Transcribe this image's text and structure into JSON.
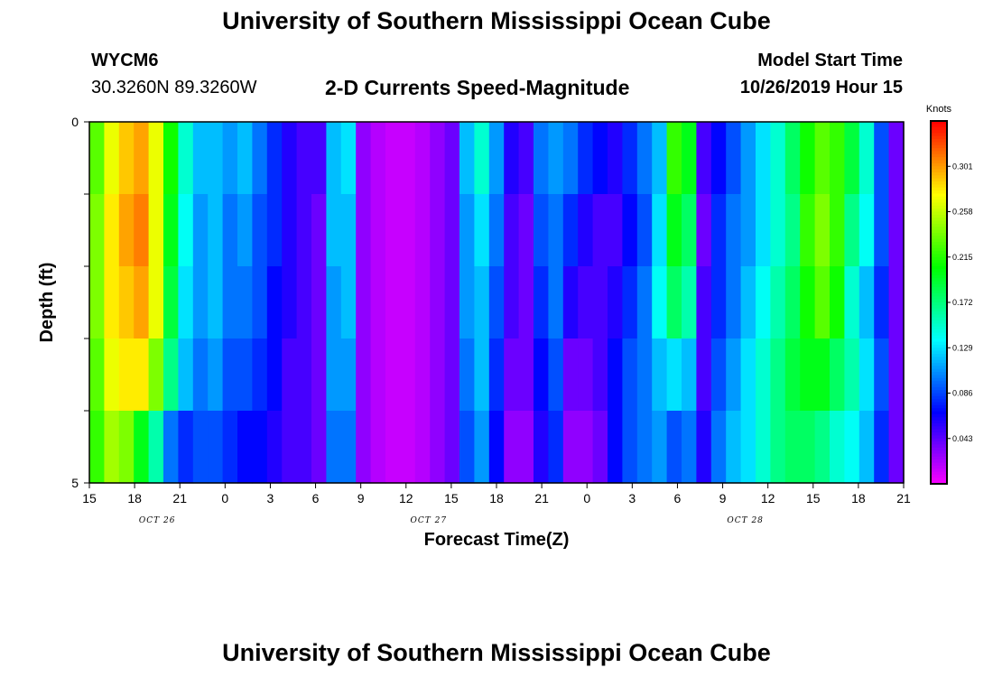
{
  "header": {
    "title": "University of Southern Mississippi Ocean Cube",
    "station_id": "WYCM6",
    "station_coords": "30.3260N 89.3260W",
    "subtitle": "2-D Currents Speed-Magnitude",
    "model_start_label": "Model Start Time",
    "model_start_time": "10/26/2019 Hour 15"
  },
  "footer": {
    "title": "University of Southern Mississippi Ocean Cube"
  },
  "chart_data": {
    "type": "heatmap",
    "title": "2-D Currents Speed-Magnitude",
    "xlabel": "Forecast Time(Z)",
    "ylabel": "Depth (ft)",
    "x_tick_labels": [
      "15",
      "18",
      "21",
      "0",
      "3",
      "6",
      "9",
      "12",
      "15",
      "18",
      "21",
      "0",
      "3",
      "6",
      "9",
      "12",
      "15",
      "18",
      "21"
    ],
    "date_labels": [
      {
        "text": "OCT 26",
        "after_tick": 1
      },
      {
        "text": "OCT 27",
        "after_tick": 7
      },
      {
        "text": "OCT 28",
        "after_tick": 14
      }
    ],
    "y_tick_labels": [
      "0",
      "5"
    ],
    "ylim": [
      0,
      5
    ],
    "depth_levels": 5,
    "hours": 55,
    "colorbar": {
      "unit": "Knots",
      "min": 0.0,
      "max": 0.344,
      "tick_values": [
        "0.301",
        "0.258",
        "0.215",
        "0.172",
        "0.129",
        "0.086",
        "0.043"
      ]
    },
    "speed_profile_by_hour": [
      0.24,
      0.28,
      0.3,
      0.31,
      0.28,
      0.2,
      0.13,
      0.1,
      0.12,
      0.1,
      0.11,
      0.09,
      0.08,
      0.07,
      0.05,
      0.04,
      0.1,
      0.12,
      0.03,
      0.02,
      0.015,
      0.015,
      0.02,
      0.03,
      0.05,
      0.08,
      0.1,
      0.09,
      0.05,
      0.03,
      0.06,
      0.1,
      0.08,
      0.06,
      0.05,
      0.06,
      0.09,
      0.12,
      0.15,
      0.2,
      0.17,
      0.05,
      0.08,
      0.1,
      0.11,
      0.14,
      0.16,
      0.18,
      0.22,
      0.24,
      0.26,
      0.24,
      0.23,
      0.12,
      0.06
    ],
    "speed_by_depth_hour": [
      [
        0.23,
        0.27,
        0.29,
        0.3,
        0.27,
        0.21,
        0.15,
        0.12,
        0.12,
        0.11,
        0.12,
        0.1,
        0.08,
        0.06,
        0.05,
        0.05,
        0.12,
        0.13,
        0.03,
        0.02,
        0.015,
        0.015,
        0.02,
        0.03,
        0.04,
        0.12,
        0.15,
        0.11,
        0.06,
        0.05,
        0.1,
        0.11,
        0.1,
        0.08,
        0.07,
        0.06,
        0.08,
        0.1,
        0.12,
        0.22,
        0.2,
        0.05,
        0.07,
        0.09,
        0.11,
        0.13,
        0.15,
        0.18,
        0.21,
        0.23,
        0.22,
        0.19,
        0.15,
        0.09,
        0.04
      ],
      [
        0.24,
        0.28,
        0.3,
        0.31,
        0.27,
        0.2,
        0.14,
        0.11,
        0.12,
        0.1,
        0.11,
        0.09,
        0.08,
        0.06,
        0.05,
        0.04,
        0.12,
        0.12,
        0.03,
        0.02,
        0.015,
        0.015,
        0.02,
        0.03,
        0.04,
        0.11,
        0.13,
        0.1,
        0.05,
        0.04,
        0.09,
        0.1,
        0.08,
        0.06,
        0.05,
        0.05,
        0.07,
        0.09,
        0.13,
        0.2,
        0.18,
        0.04,
        0.08,
        0.1,
        0.11,
        0.13,
        0.15,
        0.17,
        0.22,
        0.24,
        0.22,
        0.17,
        0.14,
        0.09,
        0.04
      ],
      [
        0.24,
        0.28,
        0.29,
        0.3,
        0.27,
        0.19,
        0.13,
        0.11,
        0.12,
        0.1,
        0.1,
        0.09,
        0.07,
        0.06,
        0.05,
        0.04,
        0.11,
        0.12,
        0.03,
        0.02,
        0.015,
        0.015,
        0.02,
        0.03,
        0.04,
        0.11,
        0.12,
        0.09,
        0.05,
        0.04,
        0.08,
        0.1,
        0.06,
        0.05,
        0.05,
        0.06,
        0.08,
        0.1,
        0.14,
        0.18,
        0.16,
        0.05,
        0.08,
        0.1,
        0.12,
        0.14,
        0.16,
        0.18,
        0.21,
        0.23,
        0.21,
        0.15,
        0.12,
        0.08,
        0.04
      ],
      [
        0.23,
        0.27,
        0.28,
        0.28,
        0.24,
        0.17,
        0.12,
        0.1,
        0.11,
        0.09,
        0.09,
        0.08,
        0.07,
        0.05,
        0.05,
        0.04,
        0.11,
        0.11,
        0.03,
        0.02,
        0.015,
        0.015,
        0.02,
        0.03,
        0.04,
        0.1,
        0.12,
        0.08,
        0.04,
        0.04,
        0.07,
        0.09,
        0.04,
        0.04,
        0.05,
        0.07,
        0.09,
        0.1,
        0.12,
        0.13,
        0.12,
        0.05,
        0.09,
        0.11,
        0.13,
        0.15,
        0.17,
        0.19,
        0.2,
        0.2,
        0.18,
        0.16,
        0.13,
        0.09,
        0.04
      ],
      [
        0.22,
        0.25,
        0.24,
        0.2,
        0.16,
        0.1,
        0.08,
        0.09,
        0.09,
        0.08,
        0.07,
        0.07,
        0.06,
        0.05,
        0.05,
        0.04,
        0.1,
        0.1,
        0.03,
        0.02,
        0.015,
        0.015,
        0.02,
        0.03,
        0.04,
        0.09,
        0.11,
        0.07,
        0.03,
        0.03,
        0.06,
        0.08,
        0.03,
        0.03,
        0.04,
        0.07,
        0.09,
        0.1,
        0.11,
        0.09,
        0.1,
        0.06,
        0.1,
        0.12,
        0.13,
        0.15,
        0.17,
        0.18,
        0.18,
        0.17,
        0.15,
        0.14,
        0.12,
        0.08,
        0.04
      ]
    ]
  }
}
